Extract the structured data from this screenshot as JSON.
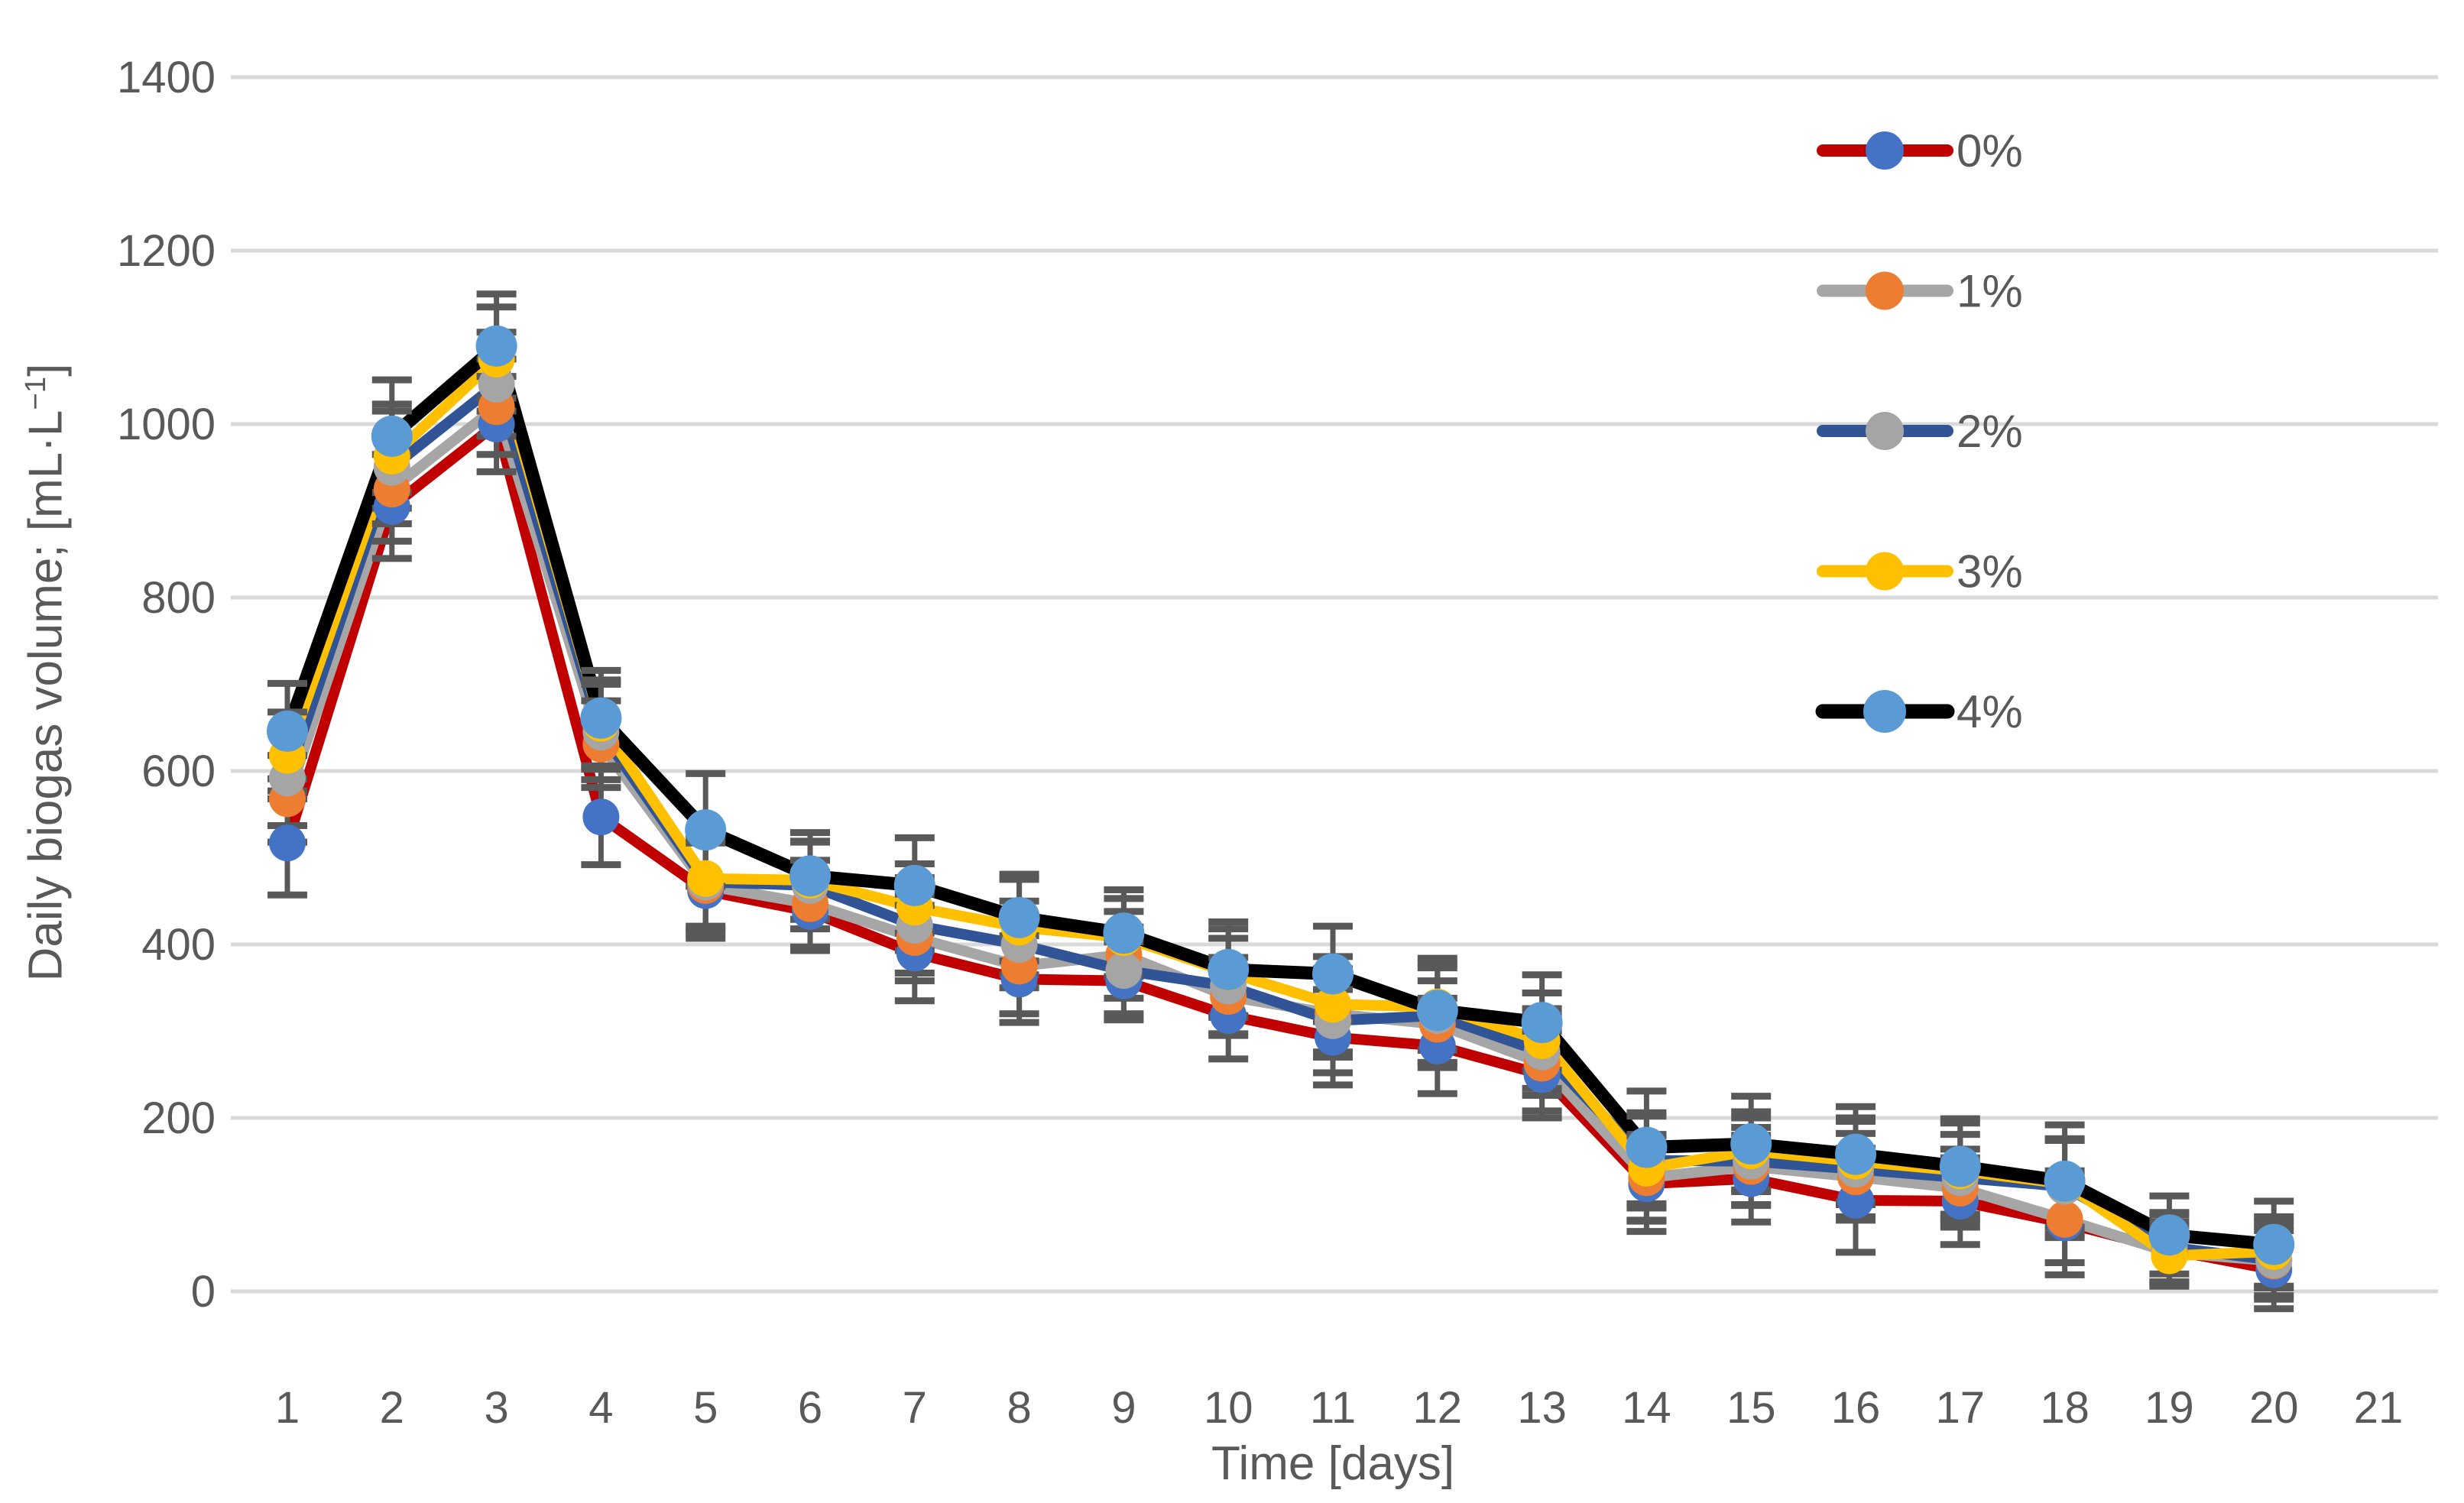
{
  "colors": {
    "background": "#FFFFFF",
    "grid": "#D9D9D9",
    "text": "#595959",
    "error_bar": "#595959"
  },
  "chart_data": {
    "type": "line",
    "title": "",
    "xlabel": "Time [days]",
    "ylabel": "Daily biogas volume; [mL·L⁻¹]",
    "legend_position": "right",
    "grid": true,
    "xlim": [
      0.5,
      21.5
    ],
    "ylim": [
      0,
      1400
    ],
    "x_axis": {
      "label": "Time [days]",
      "ticks": [
        1,
        2,
        3,
        4,
        5,
        6,
        7,
        8,
        9,
        10,
        11,
        12,
        13,
        14,
        15,
        16,
        17,
        18,
        19,
        20,
        21
      ]
    },
    "y_axis": {
      "label_main": "Daily biogas volume; [mL·L",
      "label_sup": "−1",
      "label_close": "]",
      "ticks": [
        0,
        200,
        400,
        600,
        800,
        1000,
        1200,
        1400
      ]
    },
    "x": [
      1,
      2,
      3,
      4,
      5,
      6,
      7,
      8,
      9,
      10,
      11,
      12,
      13,
      14,
      15,
      16,
      17,
      18,
      19,
      20
    ],
    "series": [
      {
        "name": "0%",
        "line_color": "#C00000",
        "marker_color": "#4472C4",
        "values": [
          517,
          905,
          1000,
          547,
          462,
          438,
          390,
          360,
          358,
          318,
          293,
          283,
          250,
          124,
          130,
          105,
          104,
          79,
          48,
          25
        ],
        "errors": [
          60,
          60,
          55,
          55,
          55,
          45,
          55,
          50,
          45,
          50,
          55,
          55,
          50,
          55,
          50,
          60,
          50,
          60,
          40,
          45
        ]
      },
      {
        "name": "1%",
        "line_color": "#A6A6A6",
        "marker_color": "#ED7D31",
        "values": [
          568,
          925,
          1020,
          631,
          468,
          447,
          408,
          375,
          388,
          340,
          320,
          308,
          263,
          131,
          144,
          132,
          119,
          83,
          45,
          35
        ],
        "errors": [
          50,
          60,
          55,
          50,
          55,
          50,
          50,
          55,
          50,
          45,
          50,
          50,
          55,
          50,
          45,
          50,
          45,
          50,
          35,
          40
        ]
      },
      {
        "name": "2%",
        "line_color": "#305496",
        "marker_color": "#A5A5A5",
        "values": [
          592,
          950,
          1046,
          645,
          472,
          468,
          422,
          400,
          370,
          352,
          312,
          318,
          276,
          151,
          150,
          141,
          131,
          121,
          51,
          36
        ],
        "errors": [
          55,
          65,
          60,
          55,
          55,
          50,
          55,
          50,
          50,
          55,
          60,
          55,
          50,
          55,
          50,
          55,
          50,
          55,
          40,
          45
        ]
      },
      {
        "name": "3%",
        "line_color": "#FFC000",
        "marker_color": "#FFC000",
        "values": [
          618,
          963,
          1075,
          655,
          476,
          474,
          443,
          420,
          408,
          368,
          331,
          328,
          289,
          142,
          162,
          150,
          139,
          124,
          41,
          46
        ],
        "errors": [
          50,
          60,
          60,
          50,
          55,
          45,
          50,
          55,
          45,
          50,
          55,
          50,
          55,
          60,
          45,
          50,
          55,
          50,
          35,
          40
        ]
      },
      {
        "name": "4%",
        "line_color": "#000000",
        "marker_color": "#5B9BD5",
        "values": [
          646,
          986,
          1090,
          661,
          532,
          479,
          468,
          431,
          413,
          371,
          366,
          324,
          310,
          166,
          170,
          158,
          144,
          127,
          65,
          54
        ],
        "errors": [
          55,
          65,
          60,
          55,
          65,
          50,
          55,
          50,
          50,
          55,
          55,
          60,
          55,
          65,
          55,
          55,
          55,
          65,
          45,
          50
        ]
      }
    ]
  }
}
